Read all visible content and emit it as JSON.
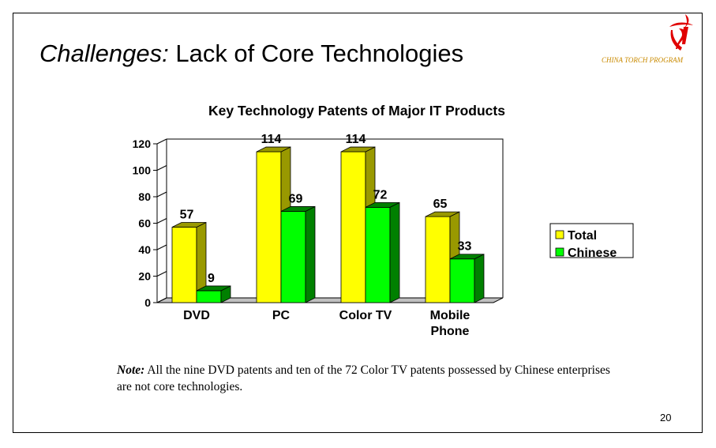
{
  "slide": {
    "title_emphasis": "Challenges:",
    "title_rest": " Lack of Core Technologies",
    "program_name": "CHINA TORCH PROGRAM",
    "page_number": "20",
    "note_label": "Note:",
    "note_text": " All the nine DVD patents and ten of the 72 Color TV patents possessed by Chinese enterprises are not core technologies.",
    "logo_icon": "torch-logo-icon",
    "accent_color": "#e00000",
    "program_color": "#c98a00"
  },
  "chart_data": {
    "type": "bar",
    "title": "Key Technology Patents of Major IT Products",
    "categories": [
      [
        "DVD"
      ],
      [
        "PC"
      ],
      [
        "Color TV"
      ],
      [
        "Mobile",
        "Phone"
      ]
    ],
    "series": [
      {
        "name": "Total",
        "values": [
          57,
          114,
          114,
          65
        ],
        "color": "#ffff00",
        "side_color": "#999900"
      },
      {
        "name": "Chinese",
        "values": [
          9,
          69,
          72,
          33
        ],
        "color": "#00ff00",
        "side_color": "#008000"
      }
    ],
    "yticks": [
      "0",
      "20",
      "40",
      "60",
      "80",
      "100",
      "120"
    ],
    "ylim": [
      0,
      120
    ],
    "grid": false,
    "legend": "right",
    "style": "3d-column"
  }
}
